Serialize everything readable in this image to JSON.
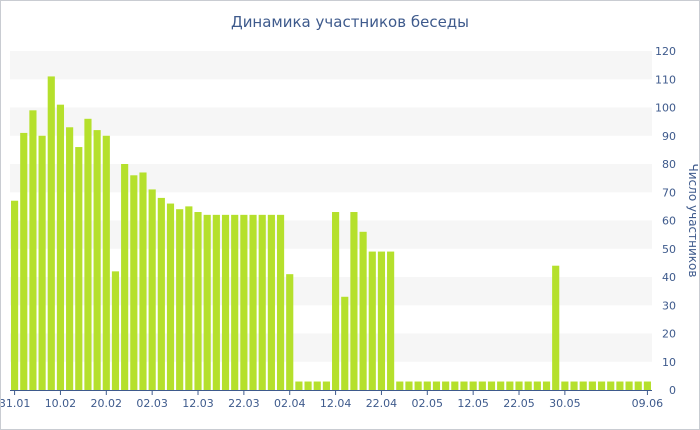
{
  "chart_data": {
    "type": "bar",
    "title": "Динамика участников беседы",
    "xlabel": "",
    "ylabel": "Число участников",
    "ylim": [
      0,
      120
    ],
    "yticks": [
      0,
      10,
      20,
      30,
      40,
      50,
      60,
      70,
      80,
      90,
      100,
      110,
      120
    ],
    "y_axis_side": "right",
    "grid": "alternating horizontal bands",
    "bar_color": "#b5e02c",
    "band_color": "#f6f6f6",
    "text_color": "#3e5a8c",
    "x_tick_labels": [
      "31.01",
      "10.02",
      "20.02",
      "02.03",
      "12.03",
      "22.03",
      "02.04",
      "12.04",
      "22.04",
      "02.05",
      "12.05",
      "22.05",
      "30.05",
      "09.06",
      "09.06"
    ],
    "x_tick_labels_note_index": [
      0,
      5,
      10,
      15,
      20,
      25,
      30,
      35,
      40,
      45,
      50,
      55,
      60,
      65,
      70
    ],
    "values": [
      67,
      91,
      99,
      90,
      111,
      101,
      93,
      86,
      96,
      92,
      90,
      42,
      80,
      76,
      77,
      71,
      68,
      66,
      64,
      65,
      63,
      62,
      62,
      62,
      62,
      62,
      62,
      62,
      62,
      62,
      41,
      3,
      3,
      3,
      3,
      63,
      33,
      63,
      56,
      49,
      49,
      49,
      3,
      3,
      3,
      3,
      3,
      3,
      3,
      3,
      3,
      3,
      3,
      3,
      3,
      3,
      3,
      3,
      3,
      44,
      3,
      3,
      3,
      3,
      3,
      3,
      3,
      3,
      3,
      3
    ]
  }
}
